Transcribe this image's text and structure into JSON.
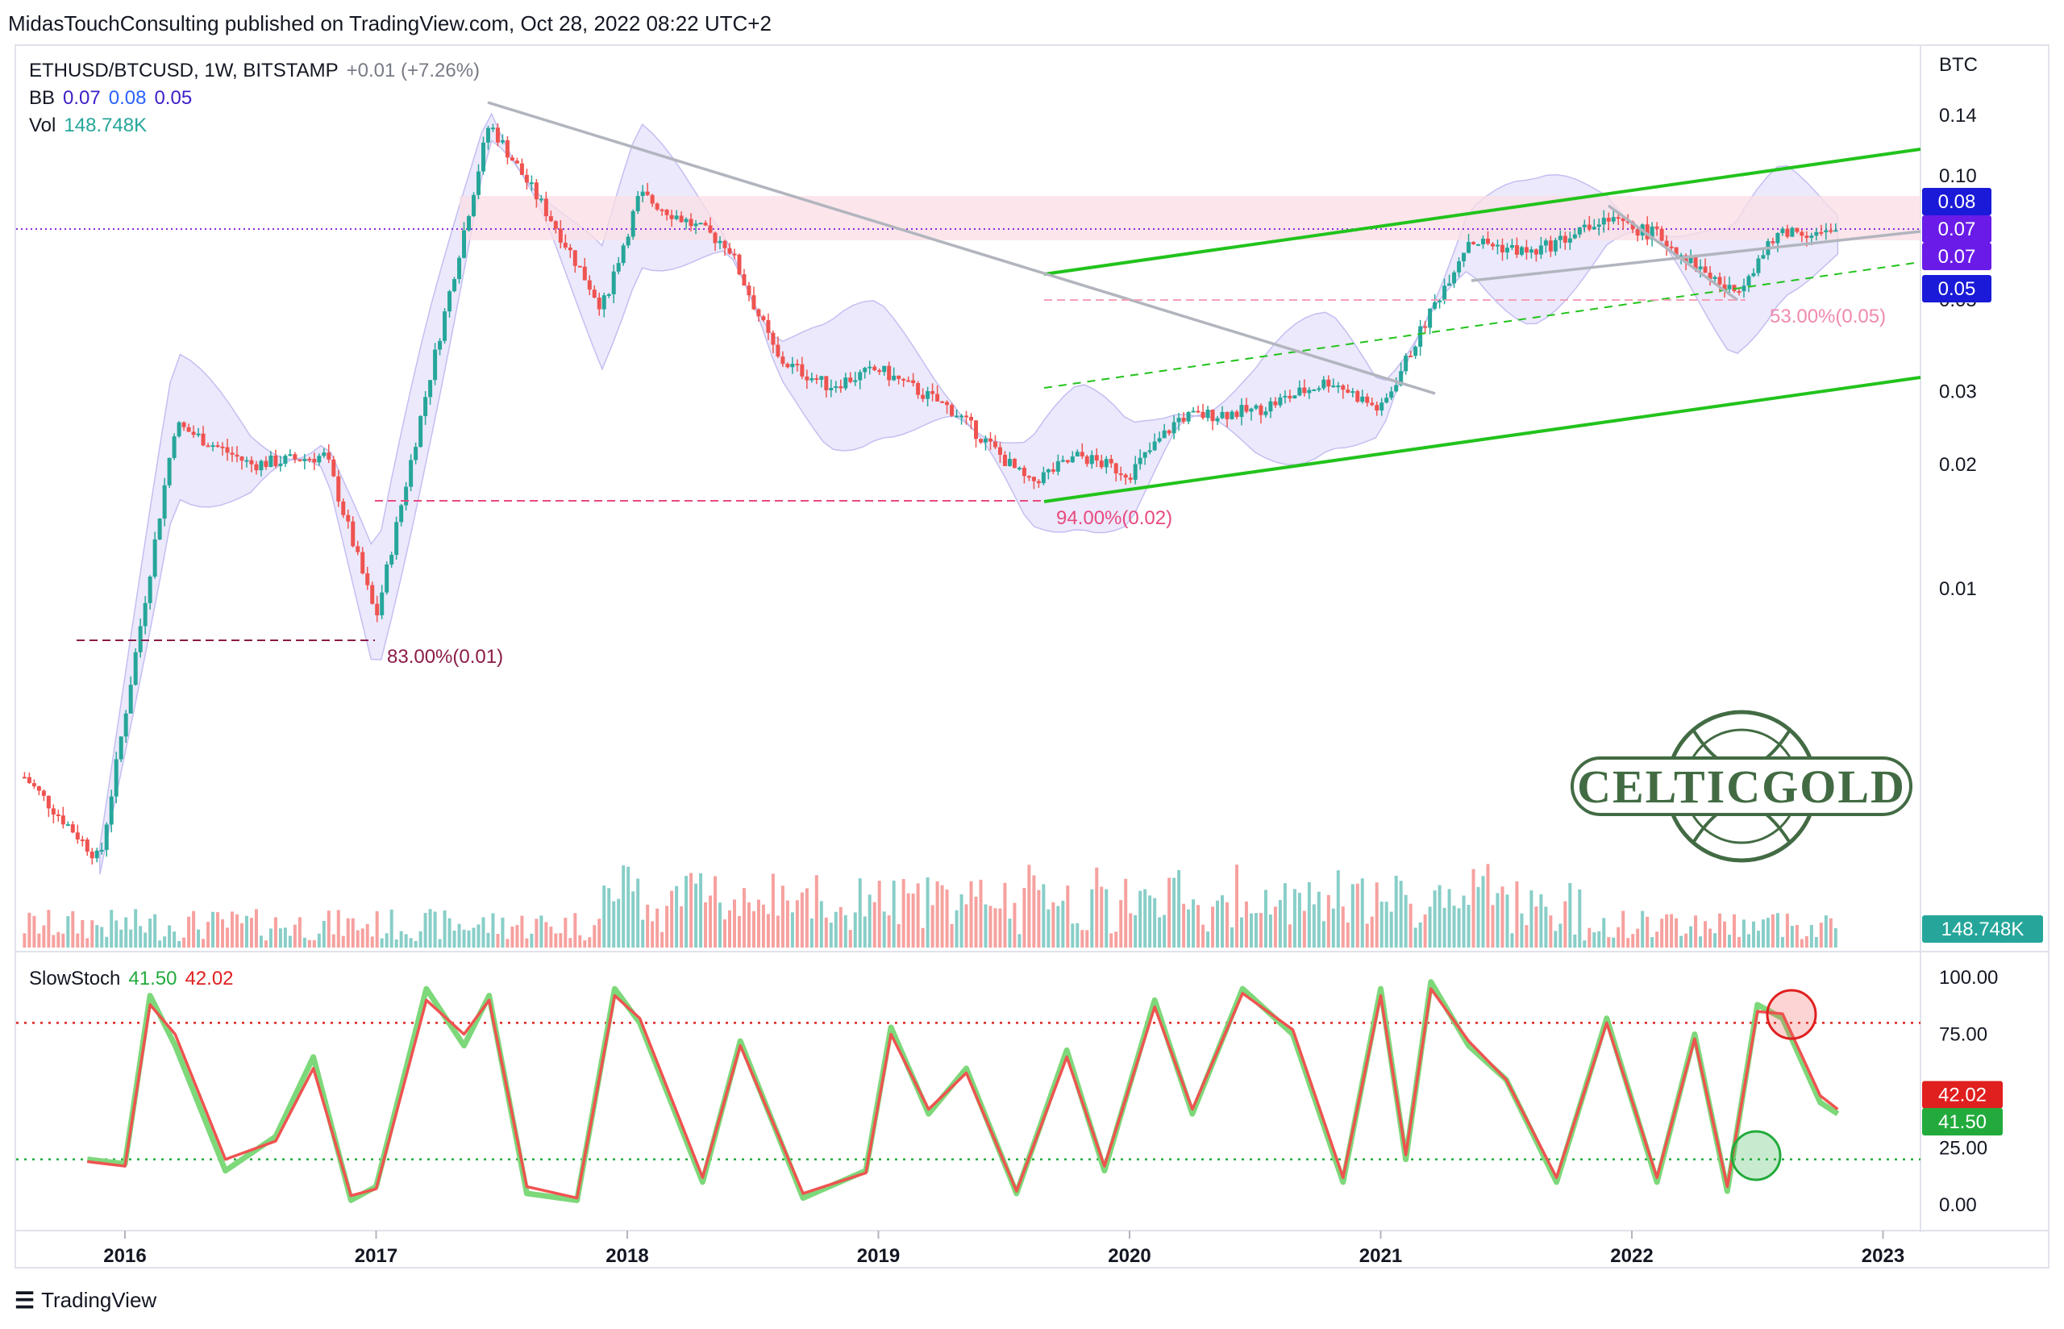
{
  "header": {
    "publisher_line": "MidasTouchConsulting published on TradingView.com, Oct 28, 2022 08:22 UTC+2"
  },
  "legend": {
    "symbol": "ETHUSD/BTCUSD, 1W, BITSTAMP",
    "change": "+0.01 (+7.26%)",
    "bb_label": "BB",
    "bb_values": [
      "0.07",
      "0.08",
      "0.05"
    ],
    "vol_label": "Vol",
    "vol_value": "148.748K"
  },
  "stoch_legend": {
    "label": "SlowStoch",
    "k": "41.50",
    "d": "42.02"
  },
  "footer": {
    "brand": "TradingView"
  },
  "watermark": {
    "text": "CELTICGOLD"
  },
  "colors": {
    "up": "#26a69a",
    "down": "#ef5350",
    "trend_green": "#22c31c",
    "trend_grey": "#b2b5be",
    "bb_fill": "#e8e6fb",
    "resistance_zone": "#fbdde4",
    "stoch_k": "#7dd87a",
    "stoch_d": "#ef5350",
    "price_tag_purple": "#6a1be8",
    "price_tag_blue": "#1a1ad8",
    "vol_tag": "#26a69a"
  },
  "chart_data": [
    {
      "type": "candlestick",
      "title": "ETHUSD/BTCUSD, 1W, BITSTAMP",
      "y_unit": "BTC",
      "y_scale": "log",
      "y_ticks": [
        "0.14",
        "0.10",
        "0.05",
        "0.03",
        "0.02",
        "0.01"
      ],
      "x_ticks": [
        "2016",
        "2017",
        "2018",
        "2019",
        "2020",
        "2021",
        "2022",
        "2023"
      ],
      "price_tags": [
        "0.08",
        "0.07",
        "0.07",
        "0.05"
      ],
      "volume_tag": "148.748K",
      "annotations": [
        "83.00%(0.01)",
        "94.00%(0.02)",
        "53.00%(0.05)"
      ],
      "approx_series": {
        "x": [
          2015.6,
          2015.9,
          2016.2,
          2016.5,
          2016.8,
          2017.0,
          2017.2,
          2017.45,
          2017.7,
          2017.9,
          2018.05,
          2018.4,
          2018.6,
          2018.8,
          2019.0,
          2019.3,
          2019.6,
          2019.8,
          2020.0,
          2020.2,
          2020.5,
          2020.8,
          2021.0,
          2021.2,
          2021.35,
          2021.6,
          2021.9,
          2022.1,
          2022.4,
          2022.6,
          2022.8
        ],
        "close": [
          0.0035,
          0.0022,
          0.025,
          0.02,
          0.021,
          0.0085,
          0.03,
          0.134,
          0.078,
          0.048,
          0.09,
          0.068,
          0.036,
          0.031,
          0.034,
          0.027,
          0.018,
          0.021,
          0.019,
          0.026,
          0.027,
          0.032,
          0.027,
          0.047,
          0.07,
          0.065,
          0.078,
          0.072,
          0.052,
          0.074,
          0.072
        ]
      }
    },
    {
      "type": "line",
      "title": "SlowStoch",
      "y_ticks": [
        "100.00",
        "75.00",
        "25.00",
        "0.00"
      ],
      "levels": [
        80,
        20
      ],
      "current": {
        "k": 41.5,
        "d": 42.02
      },
      "approx_series": {
        "x": [
          2015.85,
          2016.0,
          2016.1,
          2016.2,
          2016.4,
          2016.6,
          2016.75,
          2016.9,
          2017.0,
          2017.2,
          2017.35,
          2017.45,
          2017.6,
          2017.8,
          2017.95,
          2018.05,
          2018.3,
          2018.45,
          2018.7,
          2018.95,
          2019.05,
          2019.2,
          2019.35,
          2019.55,
          2019.75,
          2019.9,
          2020.1,
          2020.25,
          2020.45,
          2020.65,
          2020.85,
          2021.0,
          2021.1,
          2021.2,
          2021.35,
          2021.5,
          2021.7,
          2021.9,
          2022.1,
          2022.25,
          2022.38,
          2022.5,
          2022.6,
          2022.75,
          2022.82
        ],
        "k": [
          20,
          18,
          92,
          70,
          15,
          30,
          65,
          2,
          8,
          95,
          70,
          92,
          5,
          2,
          95,
          80,
          10,
          72,
          3,
          15,
          78,
          40,
          60,
          5,
          68,
          15,
          90,
          40,
          95,
          75,
          10,
          95,
          20,
          98,
          70,
          55,
          10,
          82,
          10,
          75,
          6,
          88,
          82,
          45,
          40
        ],
        "d": [
          19,
          17,
          88,
          75,
          20,
          28,
          60,
          4,
          7,
          90,
          75,
          90,
          8,
          3,
          92,
          82,
          12,
          70,
          5,
          14,
          75,
          42,
          58,
          6,
          65,
          17,
          87,
          42,
          93,
          77,
          12,
          92,
          22,
          95,
          72,
          55,
          12,
          80,
          12,
          73,
          8,
          85,
          84,
          48,
          42
        ]
      }
    }
  ]
}
